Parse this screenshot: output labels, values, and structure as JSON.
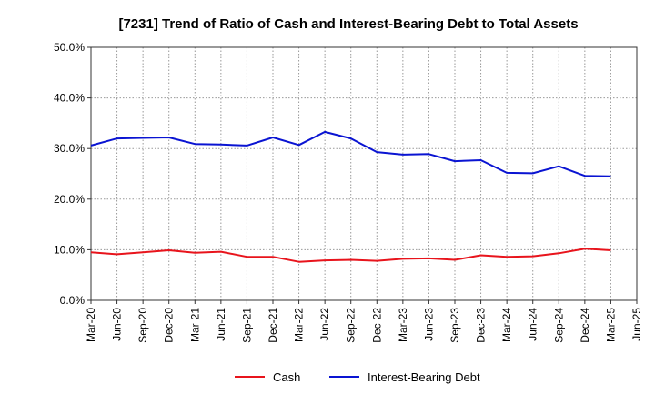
{
  "chart_data": {
    "type": "line",
    "title": "[7231]  Trend of Ratio of Cash and Interest-Bearing Debt to Total Assets",
    "xlabel": "",
    "ylabel": "",
    "x": [
      "Mar-20",
      "Jun-20",
      "Sep-20",
      "Dec-20",
      "Mar-21",
      "Jun-21",
      "Sep-21",
      "Dec-21",
      "Mar-22",
      "Jun-22",
      "Sep-22",
      "Dec-22",
      "Mar-23",
      "Jun-23",
      "Sep-23",
      "Dec-23",
      "Mar-24",
      "Jun-24",
      "Sep-24",
      "Dec-24",
      "Mar-25",
      "Jun-25"
    ],
    "yticks": [
      "0.0%",
      "10.0%",
      "20.0%",
      "30.0%",
      "40.0%",
      "50.0%"
    ],
    "ylim": [
      0,
      50
    ],
    "grid": true,
    "legend_position": "bottom",
    "series": [
      {
        "name": "Cash",
        "color": "#e8141c",
        "values": [
          9.5,
          9.1,
          9.5,
          9.9,
          9.4,
          9.6,
          8.6,
          8.6,
          7.6,
          7.9,
          8.0,
          7.8,
          8.2,
          8.3,
          8.0,
          8.9,
          8.6,
          8.7,
          9.3,
          10.2,
          9.9,
          null
        ]
      },
      {
        "name": "Interest-Bearing Debt",
        "color": "#0a14d2",
        "values": [
          30.6,
          32.0,
          32.1,
          32.2,
          30.9,
          30.8,
          30.6,
          32.2,
          30.7,
          33.3,
          32.0,
          29.3,
          28.8,
          28.9,
          27.5,
          27.7,
          25.2,
          25.1,
          26.5,
          24.6,
          24.5,
          null
        ]
      }
    ]
  }
}
